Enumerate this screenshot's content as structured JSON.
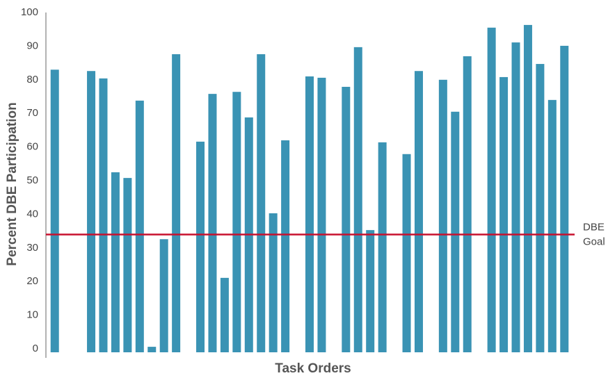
{
  "chart_data": {
    "type": "bar",
    "x_label": "Task Orders",
    "y_label": "Percent DBE Participation",
    "categories": [
      null,
      null,
      null,
      null,
      null,
      null,
      null,
      null,
      null,
      null,
      null,
      null,
      null,
      null,
      null,
      null,
      null,
      null,
      null,
      null,
      null,
      null,
      null,
      null,
      null,
      null,
      null,
      null,
      null,
      null,
      null,
      null,
      null,
      null,
      null,
      null,
      null,
      null,
      null,
      null,
      null,
      null,
      null
    ],
    "values": [
      83,
      null,
      null,
      82.6,
      80.4,
      52.5,
      50.8,
      73.8,
      0.6,
      32.6,
      87.6,
      null,
      61.6,
      75.8,
      21.1,
      76.4,
      68.8,
      87.6,
      40.3,
      62,
      null,
      81,
      80.6,
      null,
      77.9,
      89.7,
      35.3,
      61.4,
      null,
      57.9,
      82.6,
      null,
      80,
      70.5,
      87,
      null,
      95.5,
      80.8,
      91.1,
      96.3,
      84.7,
      74,
      90.1
    ],
    "color": "#3a93b4",
    "ylim": [
      0,
      100
    ],
    "yticks": [
      0,
      10,
      20,
      30,
      40,
      50,
      60,
      70,
      80,
      90,
      100
    ],
    "grid": false,
    "goal": {
      "value": 34,
      "label": [
        "DBE",
        "Goal"
      ],
      "color": "#c8102e"
    }
  }
}
